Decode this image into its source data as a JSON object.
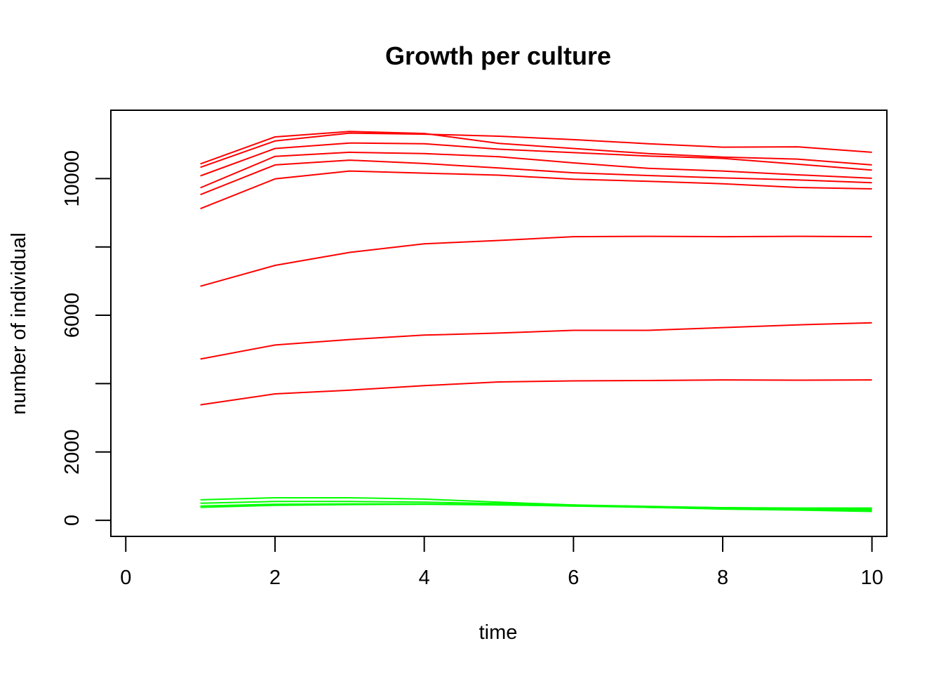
{
  "chart_data": {
    "type": "line",
    "title": "Growth per culture",
    "xlabel": "time",
    "ylabel": "number of individual",
    "xlim": [
      -0.2,
      10.2
    ],
    "ylim": [
      -470,
      12000
    ],
    "x_ticks": [
      0,
      2,
      4,
      6,
      8,
      10
    ],
    "x_tick_labels": [
      "0",
      "2",
      "4",
      "6",
      "8",
      "10"
    ],
    "y_ticks": [
      0,
      2000,
      4000,
      6000,
      8000,
      10000
    ],
    "y_tick_labels": [
      "0",
      "2000",
      "",
      "6000",
      "",
      "10000"
    ],
    "grid": false,
    "legend": "none",
    "colors": {
      "red": "#ff0000",
      "green": "#00ff00"
    },
    "x": [
      1,
      2,
      3,
      4,
      5,
      6,
      7,
      8,
      9,
      10
    ],
    "series": [
      {
        "color": "#ff0000",
        "values": [
          10430,
          11220,
          11380,
          11320,
          11030,
          10880,
          10730,
          10630,
          10570,
          10400
        ]
      },
      {
        "color": "#ff0000",
        "values": [
          10330,
          11100,
          11330,
          11300,
          11240,
          11140,
          11020,
          10920,
          10930,
          10770
        ]
      },
      {
        "color": "#ff0000",
        "values": [
          10080,
          10880,
          11040,
          11020,
          10860,
          10760,
          10660,
          10590,
          10420,
          10250
        ]
      },
      {
        "color": "#ff0000",
        "values": [
          9730,
          10650,
          10770,
          10730,
          10640,
          10460,
          10300,
          10220,
          10110,
          10010
        ]
      },
      {
        "color": "#ff0000",
        "values": [
          9530,
          10400,
          10540,
          10440,
          10310,
          10170,
          10090,
          10020,
          9960,
          9880
        ]
      },
      {
        "color": "#ff0000",
        "values": [
          9120,
          9990,
          10220,
          10160,
          10100,
          9980,
          9920,
          9850,
          9740,
          9700
        ]
      },
      {
        "color": "#ff0000",
        "values": [
          6850,
          7460,
          7840,
          8090,
          8190,
          8300,
          8310,
          8300,
          8310,
          8300
        ]
      },
      {
        "color": "#ff0000",
        "values": [
          4720,
          5130,
          5290,
          5420,
          5480,
          5560,
          5560,
          5640,
          5720,
          5780
        ]
      },
      {
        "color": "#ff0000",
        "values": [
          3380,
          3700,
          3810,
          3940,
          4050,
          4080,
          4090,
          4110,
          4100,
          4110
        ]
      },
      {
        "color": "#00ff00",
        "values": [
          600,
          660,
          660,
          620,
          530,
          450,
          380,
          330,
          300,
          260
        ]
      },
      {
        "color": "#00ff00",
        "values": [
          500,
          550,
          550,
          530,
          490,
          450,
          410,
          370,
          350,
          330
        ]
      },
      {
        "color": "#00ff00",
        "values": [
          420,
          470,
          480,
          480,
          460,
          420,
          380,
          350,
          330,
          300
        ]
      },
      {
        "color": "#00ff00",
        "values": [
          380,
          440,
          460,
          470,
          450,
          420,
          390,
          370,
          360,
          360
        ]
      }
    ]
  }
}
